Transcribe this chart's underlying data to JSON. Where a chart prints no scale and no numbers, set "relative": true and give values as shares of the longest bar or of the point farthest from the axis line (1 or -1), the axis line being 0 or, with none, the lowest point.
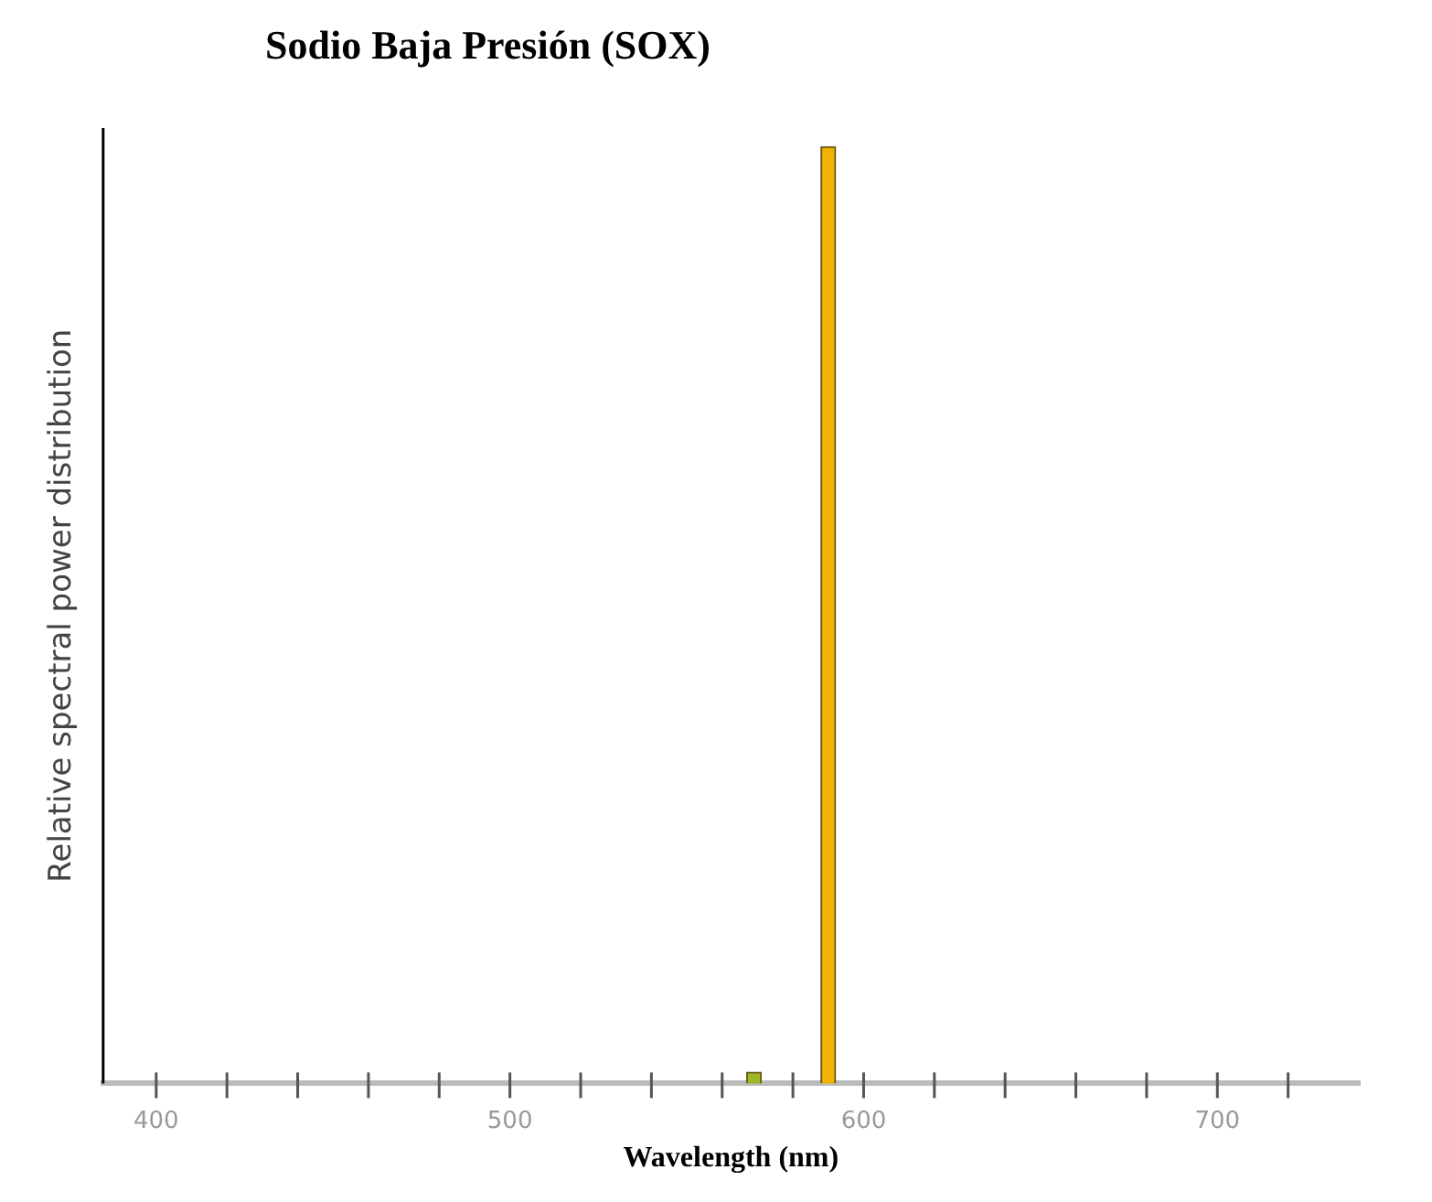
{
  "chart_data": {
    "type": "bar",
    "title": "Sodio Baja Presión (SOX)",
    "xlabel": "Wavelength (nm)",
    "ylabel": "Relative spectral power distribution",
    "relative": true,
    "x": [
      569,
      590
    ],
    "values": [
      0.012,
      1
    ],
    "colors": [
      "#9bb82a",
      "#f0b400"
    ],
    "xlim": [
      385,
      740
    ],
    "xticks": [
      {
        "value": 400,
        "label": "400"
      },
      {
        "value": 420,
        "label": null
      },
      {
        "value": 440,
        "label": null
      },
      {
        "value": 460,
        "label": null
      },
      {
        "value": 480,
        "label": null
      },
      {
        "value": 500,
        "label": "500"
      },
      {
        "value": 520,
        "label": null
      },
      {
        "value": 540,
        "label": null
      },
      {
        "value": 560,
        "label": null
      },
      {
        "value": 580,
        "label": null
      },
      {
        "value": 600,
        "label": "600"
      },
      {
        "value": 620,
        "label": null
      },
      {
        "value": 640,
        "label": null
      },
      {
        "value": 660,
        "label": null
      },
      {
        "value": 680,
        "label": null
      },
      {
        "value": 700,
        "label": "700"
      },
      {
        "value": 720,
        "label": null
      }
    ],
    "grid": false,
    "legend": false
  }
}
